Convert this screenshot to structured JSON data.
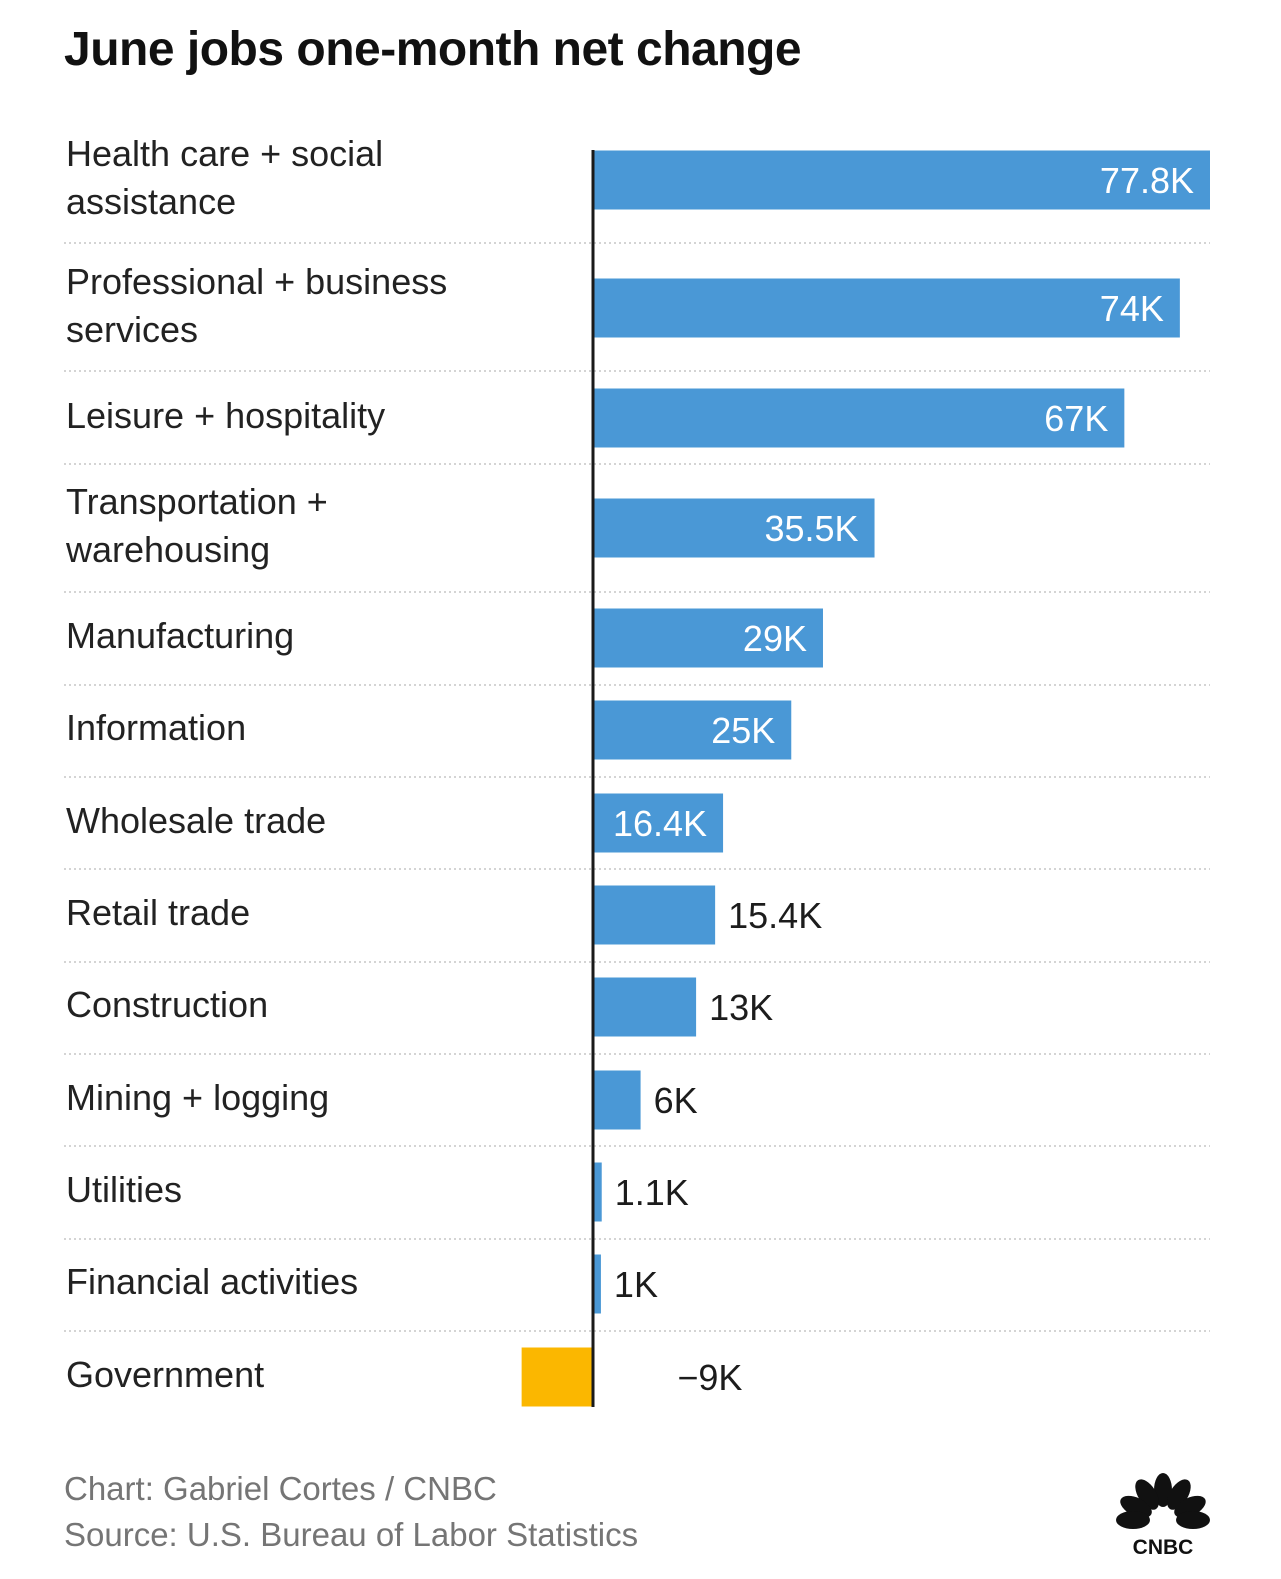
{
  "title": "June jobs one-month net change",
  "footer": {
    "credit": "Chart: Gabriel Cortes / CNBC",
    "source": "Source: U.S. Bureau of Labor Statistics"
  },
  "logo": {
    "text": "CNBC",
    "icon": "peacock-logo-icon"
  },
  "colors": {
    "positive": "#4a98d6",
    "negative": "#fbb700",
    "axis": "#1a1a1a",
    "divider": "#d4d4d4"
  },
  "chart_data": {
    "type": "bar",
    "orientation": "horizontal",
    "title": "June jobs one-month net change",
    "categories": [
      "Health care + social assistance",
      "Professional + business services",
      "Leisure + hospitality",
      "Transportation + warehousing",
      "Manufacturing",
      "Information",
      "Wholesale trade",
      "Retail trade",
      "Construction",
      "Mining + logging",
      "Utilities",
      "Financial activities",
      "Government"
    ],
    "values": [
      77.8,
      74,
      67,
      35.5,
      29,
      25,
      16.4,
      15.4,
      13,
      6,
      1.1,
      1,
      -9
    ],
    "value_labels": [
      "77.8K",
      "74K",
      "67K",
      "35.5K",
      "29K",
      "25K",
      "16.4K",
      "15.4K",
      "13K",
      "6K",
      "1.1K",
      "1K",
      "−9K"
    ],
    "units": "thousands of jobs",
    "xlim": [
      -9,
      77.8
    ],
    "grid": false,
    "legend": "none"
  }
}
